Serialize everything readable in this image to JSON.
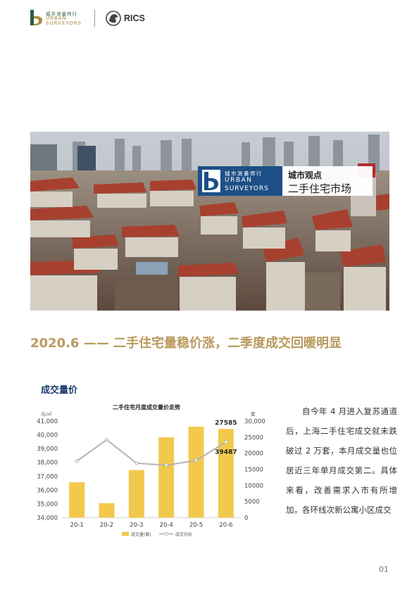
{
  "header": {
    "org_cn": "城市测量师行",
    "org_en_1": "URBAN",
    "org_en_2": "SURVEYORS",
    "partner": "RICS"
  },
  "hero": {
    "banner_org_cn": "城市测量师行",
    "banner_en_1": "URBAN",
    "banner_en_2": "SURVEYORS",
    "banner_title": "城市观点",
    "banner_subtitle": "二手住宅市场"
  },
  "headline": "2020.6 —— 二手住宅量稳价涨，二季度成交回暖明显",
  "section_title": "成交量价",
  "chart_data": {
    "type": "bar",
    "title": "二手住宅月度成交量价走势",
    "left_unit": "元/㎡",
    "right_unit": "套",
    "categories": [
      "20-1",
      "20-2",
      "20-3",
      "20-4",
      "20-5",
      "20-6"
    ],
    "series": [
      {
        "name": "成交量(套)",
        "type": "bar",
        "axis": "right",
        "color": "#f2c94c",
        "values": [
          11000,
          4500,
          14800,
          25000,
          28300,
          27585
        ]
      },
      {
        "name": "成交均价",
        "type": "line",
        "axis": "left",
        "color": "#b3b3b3",
        "values": [
          38100,
          39650,
          37950,
          37800,
          38150,
          39487
        ]
      }
    ],
    "left_axis": {
      "min": 34000,
      "max": 41000,
      "ticks": [
        "34,000",
        "35,000",
        "36,000",
        "37,000",
        "38,000",
        "39,000",
        "40,000",
        "41,000"
      ]
    },
    "right_axis": {
      "min": 0,
      "max": 30000,
      "ticks": [
        "0",
        "5000",
        "10000",
        "15000",
        "20000",
        "25000",
        "30,000"
      ]
    },
    "data_labels": {
      "volume": "27585",
      "price": "39487"
    },
    "legend_position": "bottom",
    "grid": false
  },
  "body_text": "自今年 4 月进入复苏通道后，上海二手住宅成交就未跌破过 2 万套，本月成交量也位居近三年单月成交第二。具体来看，改善需求入市有所增加，各环线次新公寓小区成交",
  "page_number": "01",
  "colors": {
    "gold": "#b89a5e",
    "navy": "#1b3a6d",
    "bar": "#f2c94c",
    "line": "#b3b3b3"
  }
}
